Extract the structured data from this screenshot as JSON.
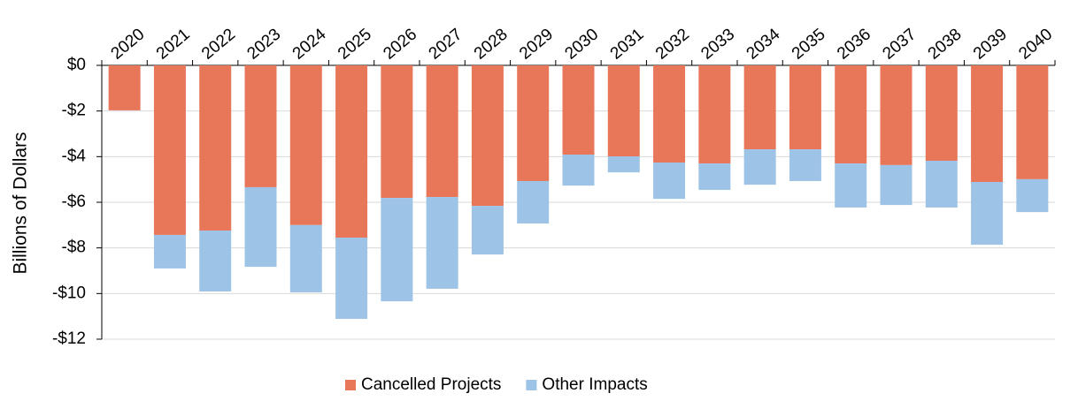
{
  "chart_data": {
    "type": "bar",
    "stacked": true,
    "y_label": "Billions of Dollars",
    "categories": [
      "2020",
      "2021",
      "2022",
      "2023",
      "2024",
      "2025",
      "2026",
      "2027",
      "2028",
      "2029",
      "2030",
      "2031",
      "2032",
      "2033",
      "2034",
      "2035",
      "2036",
      "2037",
      "2038",
      "2039",
      "2040"
    ],
    "series": [
      {
        "name": "Cancelled Projects",
        "color": "#e8775a",
        "values": [
          -1.97,
          -7.43,
          -7.24,
          -5.34,
          -7.0,
          -7.55,
          -5.81,
          -5.77,
          -6.16,
          -5.07,
          -3.91,
          -3.99,
          -4.26,
          -4.3,
          -3.68,
          -3.68,
          -4.3,
          -4.37,
          -4.18,
          -5.11,
          -4.99
        ]
      },
      {
        "name": "Other Impacts",
        "color": "#9dc3e6",
        "values": [
          0,
          -1.47,
          -2.67,
          -3.49,
          -2.95,
          -3.56,
          -4.53,
          -4.02,
          -2.13,
          -1.86,
          -1.36,
          -0.7,
          -1.59,
          -1.16,
          -1.55,
          -1.39,
          -1.93,
          -1.75,
          -2.05,
          -2.75,
          -1.44
        ]
      }
    ],
    "ylim": [
      -12,
      0
    ],
    "yticks": [
      {
        "value": 0,
        "label": "$0"
      },
      {
        "value": -2,
        "label": "-$2"
      },
      {
        "value": -4,
        "label": "-$4"
      },
      {
        "value": -6,
        "label": "-$6"
      },
      {
        "value": -8,
        "label": "-$8"
      },
      {
        "value": -10,
        "label": "-$10"
      },
      {
        "value": -12,
        "label": "-$12"
      }
    ],
    "grid": true,
    "legend": "bottom"
  }
}
